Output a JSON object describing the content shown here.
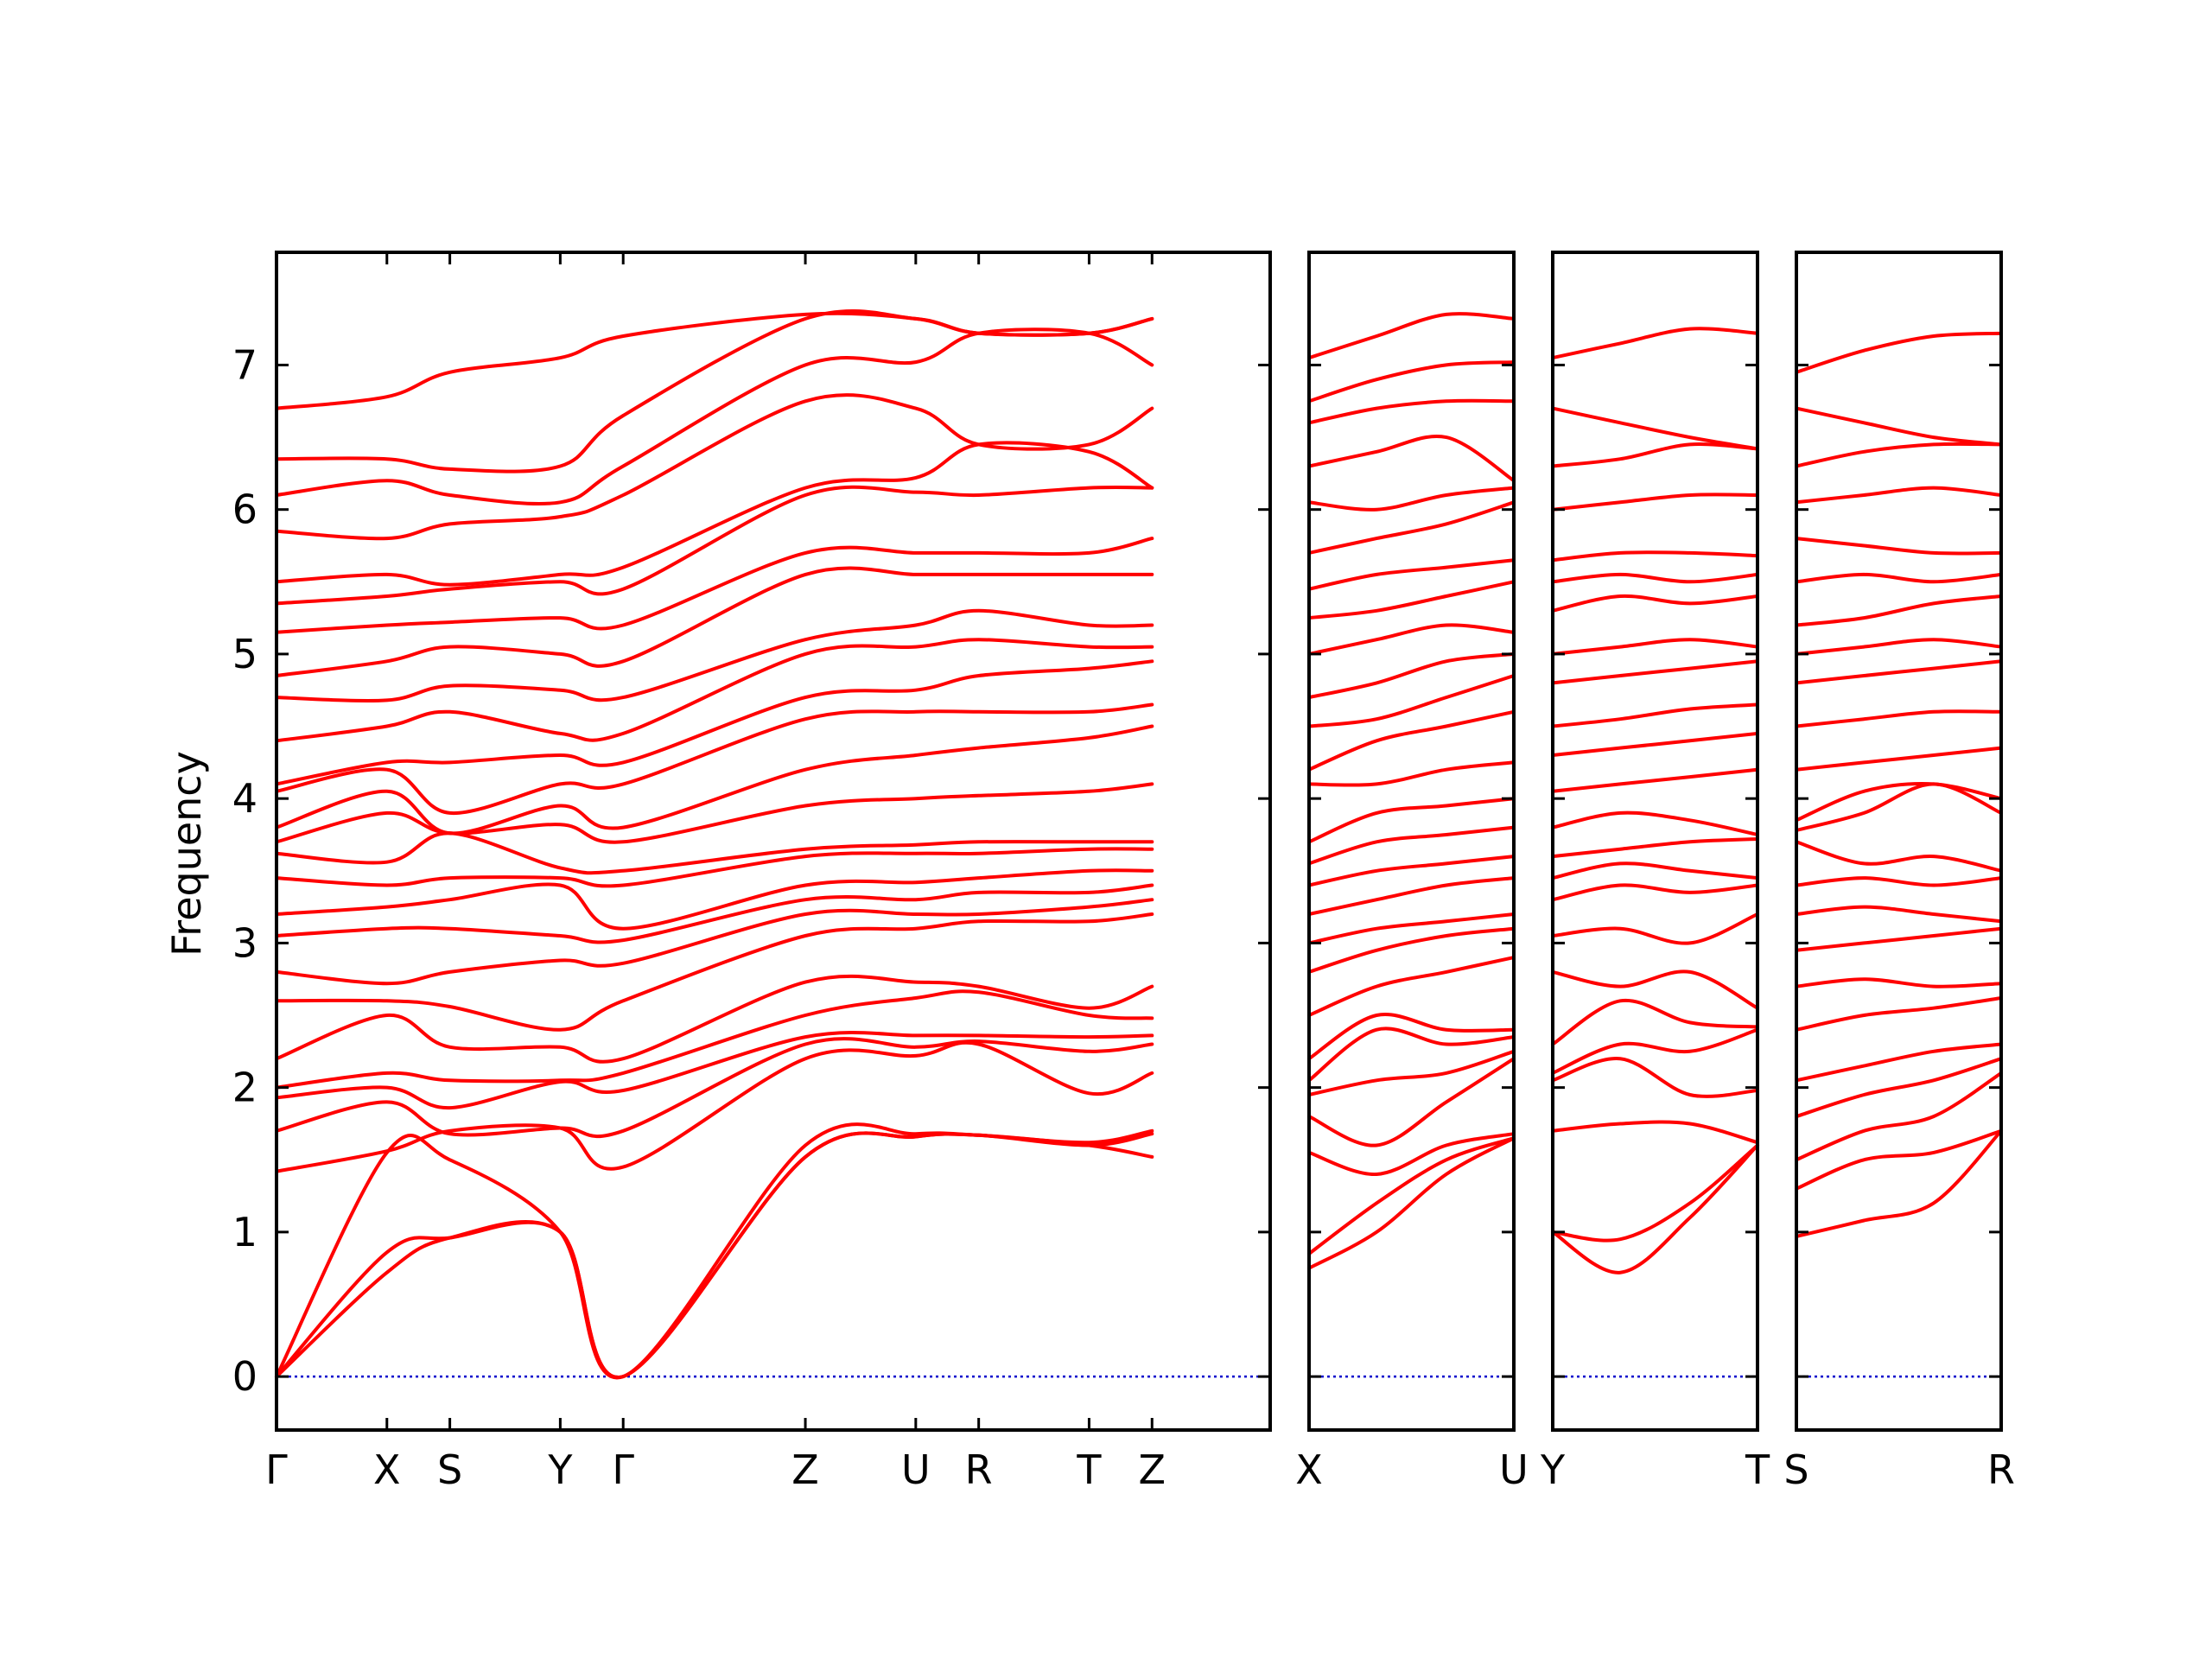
{
  "chart_data": {
    "type": "line",
    "ylabel": "Frequency",
    "ylim": [
      -0.37,
      7.78
    ],
    "yticks": [
      0,
      1,
      2,
      3,
      4,
      5,
      6,
      7
    ],
    "grid": false,
    "colors": {
      "bands": "#ff0000",
      "zero_line": "#0000cc",
      "frame": "#000000"
    },
    "panels": [
      {
        "name": "panel-main",
        "x_range": [
          0,
          9
        ],
        "ticks": [
          {
            "x": 0,
            "label": "Γ"
          },
          {
            "x": 1,
            "label": "X"
          },
          {
            "x": 1.57,
            "label": "S"
          },
          {
            "x": 2.57,
            "label": "Y"
          },
          {
            "x": 3.14,
            "label": "Γ"
          },
          {
            "x": 4.79,
            "label": "Z"
          },
          {
            "x": 5.79,
            "label": "U"
          },
          {
            "x": 6.36,
            "label": "R"
          },
          {
            "x": 7.36,
            "label": "T"
          },
          {
            "x": 7.93,
            "label": "Z"
          }
        ],
        "x": [
          0,
          1,
          1.57,
          2.57,
          3.14,
          4.79,
          5.79,
          6.36,
          7.36,
          7.93
        ],
        "bands": [
          [
            0,
            0.72,
            0.96,
            1.0,
            0,
            1.52,
            1.66,
            1.67,
            1.6,
            1.52
          ],
          [
            0,
            0.86,
            0.96,
            1.0,
            0,
            1.52,
            1.66,
            1.67,
            1.6,
            1.68
          ],
          [
            0,
            1.55,
            1.5,
            1.0,
            0,
            1.6,
            1.68,
            1.67,
            1.62,
            1.7
          ],
          [
            1.42,
            1.56,
            1.7,
            1.72,
            1.45,
            2.2,
            2.22,
            2.3,
            1.96,
            2.1
          ],
          [
            1.7,
            1.9,
            1.68,
            1.72,
            1.7,
            2.3,
            2.28,
            2.32,
            2.25,
            2.3
          ],
          [
            1.93,
            2.0,
            1.86,
            2.04,
            1.98,
            2.35,
            2.36,
            2.36,
            2.35,
            2.36
          ],
          [
            2.0,
            2.1,
            2.05,
            2.05,
            2.1,
            2.5,
            2.62,
            2.66,
            2.5,
            2.48
          ],
          [
            2.2,
            2.5,
            2.28,
            2.28,
            2.2,
            2.73,
            2.73,
            2.7,
            2.55,
            2.7
          ],
          [
            2.6,
            2.6,
            2.56,
            2.4,
            2.6,
            3.05,
            3.1,
            3.15,
            3.15,
            3.2
          ],
          [
            2.8,
            2.72,
            2.8,
            2.88,
            2.86,
            3.2,
            3.2,
            3.2,
            3.25,
            3.3
          ],
          [
            3.05,
            3.1,
            3.1,
            3.05,
            3.02,
            3.3,
            3.3,
            3.35,
            3.35,
            3.4
          ],
          [
            3.2,
            3.25,
            3.3,
            3.4,
            3.1,
            3.4,
            3.42,
            3.45,
            3.5,
            3.5
          ],
          [
            3.45,
            3.4,
            3.45,
            3.45,
            3.4,
            3.6,
            3.62,
            3.62,
            3.65,
            3.65
          ],
          [
            3.62,
            3.56,
            3.76,
            3.52,
            3.5,
            3.65,
            3.68,
            3.7,
            3.7,
            3.7
          ],
          [
            3.7,
            3.9,
            3.76,
            3.82,
            3.7,
            3.95,
            4.0,
            4.02,
            4.05,
            4.1
          ],
          [
            3.8,
            4.05,
            3.76,
            3.95,
            3.8,
            4.2,
            4.3,
            4.35,
            4.42,
            4.5
          ],
          [
            4.05,
            4.2,
            3.9,
            4.1,
            4.1,
            4.55,
            4.6,
            4.6,
            4.6,
            4.65
          ],
          [
            4.1,
            4.25,
            4.25,
            4.3,
            4.25,
            4.7,
            4.75,
            4.85,
            4.9,
            4.95
          ],
          [
            4.4,
            4.5,
            4.6,
            4.45,
            4.45,
            5.0,
            5.05,
            5.1,
            5.05,
            5.05
          ],
          [
            4.7,
            4.68,
            4.78,
            4.75,
            4.7,
            5.1,
            5.2,
            5.3,
            5.2,
            5.2
          ],
          [
            4.85,
            4.95,
            5.05,
            5.0,
            4.95,
            5.55,
            5.55,
            5.55,
            5.55,
            5.55
          ],
          [
            5.15,
            5.2,
            5.22,
            5.25,
            5.2,
            5.7,
            5.7,
            5.7,
            5.7,
            5.8
          ],
          [
            5.35,
            5.4,
            5.45,
            5.5,
            5.45,
            6.1,
            6.12,
            6.1,
            6.15,
            6.15
          ],
          [
            5.5,
            5.55,
            5.48,
            5.55,
            5.6,
            6.15,
            6.22,
            6.45,
            6.4,
            6.15
          ],
          [
            5.85,
            5.8,
            5.9,
            5.95,
            6.1,
            6.75,
            6.7,
            6.45,
            6.45,
            6.7
          ],
          [
            6.1,
            6.2,
            6.1,
            6.05,
            6.3,
            7.0,
            7.02,
            7.22,
            7.22,
            7.0
          ],
          [
            6.35,
            6.35,
            6.28,
            6.3,
            6.65,
            7.32,
            7.32,
            7.22,
            7.22,
            7.32
          ],
          [
            6.7,
            6.78,
            6.95,
            7.05,
            7.2,
            7.35,
            7.32,
            7.22,
            7.22,
            7.32
          ]
        ]
      },
      {
        "name": "panel-x-u",
        "x_range": [
          0,
          1
        ],
        "ticks": [
          {
            "x": 0,
            "label": "X"
          },
          {
            "x": 1,
            "label": "U"
          }
        ],
        "x": [
          0,
          0.33,
          0.67,
          1
        ],
        "bands": [
          [
            0.75,
            1.0,
            1.4,
            1.65
          ],
          [
            0.85,
            1.2,
            1.5,
            1.65
          ],
          [
            1.55,
            1.4,
            1.6,
            1.68
          ],
          [
            1.8,
            1.6,
            1.9,
            2.2
          ],
          [
            1.95,
            2.05,
            2.1,
            2.25
          ],
          [
            2.05,
            2.4,
            2.3,
            2.35
          ],
          [
            2.2,
            2.5,
            2.4,
            2.4
          ],
          [
            2.5,
            2.7,
            2.8,
            2.9
          ],
          [
            2.8,
            2.95,
            3.05,
            3.1
          ],
          [
            3.0,
            3.1,
            3.15,
            3.2
          ],
          [
            3.2,
            3.3,
            3.4,
            3.45
          ],
          [
            3.4,
            3.5,
            3.55,
            3.6
          ],
          [
            3.55,
            3.7,
            3.75,
            3.8
          ],
          [
            3.7,
            3.9,
            3.95,
            4.0
          ],
          [
            4.1,
            4.1,
            4.2,
            4.25
          ],
          [
            4.2,
            4.4,
            4.5,
            4.6
          ],
          [
            4.5,
            4.55,
            4.7,
            4.85
          ],
          [
            4.7,
            4.8,
            4.95,
            5.0
          ],
          [
            5.0,
            5.1,
            5.2,
            5.15
          ],
          [
            5.25,
            5.3,
            5.4,
            5.5
          ],
          [
            5.45,
            5.55,
            5.6,
            5.65
          ],
          [
            5.7,
            5.8,
            5.9,
            6.05
          ],
          [
            6.05,
            6.0,
            6.1,
            6.15
          ],
          [
            6.3,
            6.4,
            6.5,
            6.2
          ],
          [
            6.6,
            6.7,
            6.75,
            6.75
          ],
          [
            6.75,
            6.9,
            7.0,
            7.02
          ],
          [
            7.05,
            7.2,
            7.35,
            7.32
          ]
        ]
      },
      {
        "name": "panel-y-t",
        "x_range": [
          0,
          1
        ],
        "ticks": [
          {
            "x": 0,
            "label": "Y"
          },
          {
            "x": 1,
            "label": "T"
          }
        ],
        "x": [
          0,
          0.33,
          0.67,
          1
        ],
        "bands": [
          [
            1.0,
            0.72,
            1.1,
            1.6
          ],
          [
            1.0,
            0.95,
            1.2,
            1.6
          ],
          [
            1.7,
            1.75,
            1.75,
            1.62
          ],
          [
            2.05,
            2.2,
            1.95,
            1.98
          ],
          [
            2.1,
            2.3,
            2.25,
            2.4
          ],
          [
            2.3,
            2.6,
            2.45,
            2.42
          ],
          [
            2.8,
            2.7,
            2.8,
            2.55
          ],
          [
            3.05,
            3.1,
            3.0,
            3.2
          ],
          [
            3.3,
            3.4,
            3.35,
            3.4
          ],
          [
            3.45,
            3.55,
            3.5,
            3.45
          ],
          [
            3.6,
            3.65,
            3.7,
            3.72
          ],
          [
            3.8,
            3.9,
            3.85,
            3.75
          ],
          [
            4.05,
            4.1,
            4.15,
            4.2
          ],
          [
            4.3,
            4.35,
            4.4,
            4.45
          ],
          [
            4.5,
            4.55,
            4.62,
            4.65
          ],
          [
            4.8,
            4.85,
            4.9,
            4.95
          ],
          [
            5.0,
            5.05,
            5.1,
            5.05
          ],
          [
            5.3,
            5.4,
            5.35,
            5.4
          ],
          [
            5.5,
            5.55,
            5.5,
            5.55
          ],
          [
            5.65,
            5.7,
            5.7,
            5.68
          ],
          [
            6.0,
            6.05,
            6.1,
            6.1
          ],
          [
            6.3,
            6.35,
            6.45,
            6.42
          ],
          [
            6.7,
            6.6,
            6.5,
            6.42
          ],
          [
            7.05,
            7.15,
            7.25,
            7.22
          ]
        ]
      },
      {
        "name": "panel-s-r",
        "x_range": [
          0,
          1
        ],
        "ticks": [
          {
            "x": 0,
            "label": "S"
          },
          {
            "x": 1,
            "label": "R"
          }
        ],
        "x": [
          0,
          0.33,
          0.67,
          1
        ],
        "bands": [
          [
            0.97,
            1.08,
            1.2,
            1.7
          ],
          [
            1.3,
            1.5,
            1.55,
            1.7
          ],
          [
            1.5,
            1.7,
            1.8,
            2.1
          ],
          [
            1.8,
            1.95,
            2.05,
            2.2
          ],
          [
            2.05,
            2.15,
            2.25,
            2.3
          ],
          [
            2.4,
            2.5,
            2.55,
            2.62
          ],
          [
            2.7,
            2.75,
            2.7,
            2.72
          ],
          [
            2.95,
            3.0,
            3.05,
            3.1
          ],
          [
            3.2,
            3.25,
            3.2,
            3.15
          ],
          [
            3.4,
            3.45,
            3.4,
            3.45
          ],
          [
            3.7,
            3.55,
            3.6,
            3.5
          ],
          [
            3.78,
            3.9,
            4.1,
            3.9
          ],
          [
            3.85,
            4.05,
            4.1,
            4.0
          ],
          [
            4.2,
            4.25,
            4.3,
            4.35
          ],
          [
            4.5,
            4.55,
            4.6,
            4.6
          ],
          [
            4.8,
            4.85,
            4.9,
            4.95
          ],
          [
            5.0,
            5.05,
            5.1,
            5.05
          ],
          [
            5.2,
            5.25,
            5.35,
            5.4
          ],
          [
            5.5,
            5.55,
            5.5,
            5.55
          ],
          [
            5.8,
            5.75,
            5.7,
            5.7
          ],
          [
            6.05,
            6.1,
            6.15,
            6.1
          ],
          [
            6.3,
            6.4,
            6.45,
            6.45
          ],
          [
            6.7,
            6.6,
            6.5,
            6.45
          ],
          [
            6.95,
            7.1,
            7.2,
            7.22
          ]
        ]
      }
    ]
  }
}
